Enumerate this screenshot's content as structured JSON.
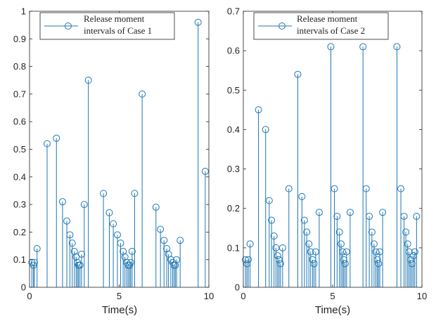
{
  "chart_data": [
    {
      "type": "stem",
      "xlabel": "Time(s)",
      "ylabel": "",
      "xlim": [
        0,
        10
      ],
      "ylim": [
        0,
        1
      ],
      "xticks": [
        "0",
        "5",
        "10"
      ],
      "yticks": [
        "0",
        "0.1",
        "0.2",
        "0.3",
        "0.4",
        "0.5",
        "0.6",
        "0.7",
        "0.8",
        "0.9",
        "1"
      ],
      "legend": [
        "Release moment",
        "intervals of Case 1"
      ],
      "legend_position": "top-left",
      "color": "#1f77b4",
      "series": [
        {
          "name": "Release moment intervals of Case 1",
          "x": [
            0.13,
            0.22,
            0.27,
            0.42,
            0.98,
            1.5,
            1.84,
            2.08,
            2.25,
            2.38,
            2.5,
            2.6,
            2.67,
            2.73,
            2.81,
            2.9,
            3.05,
            3.28,
            4.12,
            4.45,
            4.67,
            4.9,
            5.08,
            5.22,
            5.32,
            5.42,
            5.5,
            5.58,
            5.64,
            5.72,
            5.86,
            6.28,
            7.05,
            7.3,
            7.5,
            7.65,
            7.75,
            7.88,
            7.98,
            8.06,
            8.13,
            8.2,
            8.4,
            9.4,
            9.8
          ],
          "y": [
            0.09,
            0.08,
            0.09,
            0.14,
            0.52,
            0.54,
            0.31,
            0.24,
            0.19,
            0.16,
            0.13,
            0.11,
            0.09,
            0.08,
            0.08,
            0.12,
            0.3,
            0.75,
            0.34,
            0.27,
            0.23,
            0.19,
            0.16,
            0.13,
            0.11,
            0.09,
            0.08,
            0.08,
            0.09,
            0.13,
            0.34,
            0.7,
            0.29,
            0.21,
            0.17,
            0.14,
            0.12,
            0.1,
            0.09,
            0.08,
            0.08,
            0.1,
            0.17,
            0.96,
            0.42
          ]
        }
      ]
    },
    {
      "type": "stem",
      "xlabel": "Time(s)",
      "ylabel": "",
      "xlim": [
        0,
        10
      ],
      "ylim": [
        0,
        0.7
      ],
      "xticks": [
        "0",
        "5",
        "10"
      ],
      "yticks": [
        "0",
        "0.1",
        "0.2",
        "0.3",
        "0.4",
        "0.5",
        "0.6",
        "0.7"
      ],
      "legend": [
        "Release moment",
        "intervals of Case 2"
      ],
      "legend_position": "top-left",
      "color": "#1f77b4",
      "series": [
        {
          "name": "Release moment intervals of Case 2",
          "x": [
            0.12,
            0.2,
            0.28,
            0.38,
            0.85,
            1.25,
            1.45,
            1.58,
            1.72,
            1.83,
            1.92,
            2.0,
            2.08,
            2.2,
            2.55,
            3.05,
            3.28,
            3.42,
            3.55,
            3.67,
            3.77,
            3.88,
            3.96,
            4.05,
            4.25,
            4.9,
            5.1,
            5.25,
            5.38,
            5.47,
            5.55,
            5.62,
            5.7,
            5.78,
            5.98,
            6.7,
            6.88,
            7.05,
            7.2,
            7.32,
            7.42,
            7.5,
            7.57,
            7.64,
            7.8,
            8.6,
            8.82,
            9.0,
            9.1,
            9.2,
            9.28,
            9.36,
            9.44,
            9.52,
            9.6,
            9.7
          ],
          "y": [
            0.07,
            0.06,
            0.07,
            0.11,
            0.45,
            0.4,
            0.22,
            0.17,
            0.13,
            0.1,
            0.08,
            0.07,
            0.06,
            0.1,
            0.25,
            0.54,
            0.23,
            0.17,
            0.14,
            0.11,
            0.09,
            0.07,
            0.06,
            0.09,
            0.19,
            0.61,
            0.25,
            0.18,
            0.14,
            0.11,
            0.09,
            0.07,
            0.06,
            0.09,
            0.19,
            0.61,
            0.25,
            0.18,
            0.14,
            0.11,
            0.09,
            0.07,
            0.06,
            0.09,
            0.19,
            0.61,
            0.25,
            0.18,
            0.14,
            0.11,
            0.09,
            0.07,
            0.06,
            0.08,
            0.09,
            0.18
          ]
        }
      ]
    }
  ]
}
